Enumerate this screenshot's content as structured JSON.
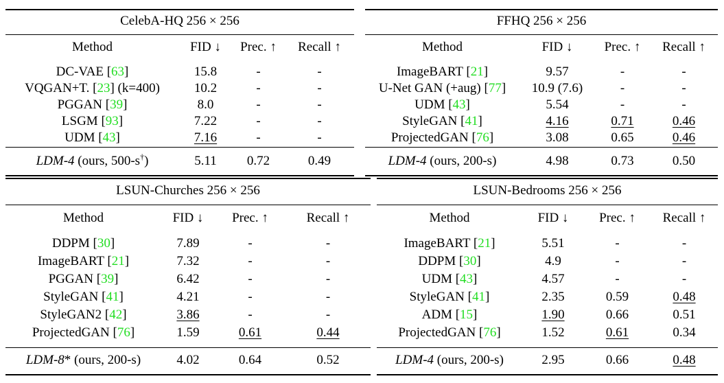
{
  "tables": [
    {
      "title": "CelebA-HQ 256 × 256",
      "headers": [
        "Method",
        "FID ↓",
        "Prec. ↑",
        "Recall ↑"
      ],
      "rows": [
        {
          "method": "DC-VAE",
          "cite": "63",
          "method_suffix": "",
          "fid": "15.8",
          "prec": "-",
          "recall": "-"
        },
        {
          "method": "VQGAN+T.",
          "cite": "23",
          "method_suffix": " (k=400)",
          "fid": "10.2",
          "prec": "-",
          "recall": "-"
        },
        {
          "method": "PGGAN",
          "cite": "39",
          "method_suffix": "",
          "fid": "8.0",
          "prec": "-",
          "recall": "-"
        },
        {
          "method": "LSGM",
          "cite": "93",
          "method_suffix": "",
          "fid": "7.22",
          "prec": "-",
          "recall": "-"
        },
        {
          "method": "UDM",
          "cite": "43",
          "method_suffix": "",
          "fid": "7.16",
          "prec": "-",
          "recall": "-"
        }
      ],
      "ours": {
        "method": "LDM-4",
        "sup": "",
        "detail": " (ours, 500-s",
        "detail_sup": "†",
        "detail_end": ")",
        "fid": "5.11",
        "prec": "0.72",
        "recall": "0.49"
      }
    },
    {
      "title": "FFHQ 256 × 256",
      "headers": [
        "Method",
        "FID ↓",
        "Prec. ↑",
        "Recall ↑"
      ],
      "rows": [
        {
          "method": "ImageBART",
          "cite": "21",
          "method_suffix": "",
          "fid": "9.57",
          "prec": "-",
          "recall": "-"
        },
        {
          "method": "U-Net GAN (+aug)",
          "cite": "77",
          "method_suffix": "",
          "fid": "10.9 (7.6)",
          "prec": "-",
          "recall": "-"
        },
        {
          "method": "UDM",
          "cite": "43",
          "method_suffix": "",
          "fid": "5.54",
          "prec": "-",
          "recall": "-"
        },
        {
          "method": "StyleGAN",
          "cite": "41",
          "method_suffix": "",
          "fid": "4.16",
          "prec": "0.71",
          "recall": "0.46"
        },
        {
          "method": "ProjectedGAN",
          "cite": "76",
          "method_suffix": "",
          "fid": "3.08",
          "prec": "0.65",
          "recall": "0.46"
        }
      ],
      "ours": {
        "method": "LDM-4",
        "sup": "",
        "detail": " (ours, 200-s)",
        "detail_sup": "",
        "detail_end": "",
        "fid": "4.98",
        "prec": "0.73",
        "recall": "0.50"
      }
    },
    {
      "title": "LSUN-Churches 256 × 256",
      "headers": [
        "Method",
        "FID ↓",
        "Prec. ↑",
        "Recall ↑"
      ],
      "rows": [
        {
          "method": "DDPM",
          "cite": "30",
          "method_suffix": "",
          "fid": "7.89",
          "prec": "-",
          "recall": "-"
        },
        {
          "method": "ImageBART",
          "cite": "21",
          "method_suffix": "",
          "fid": "7.32",
          "prec": "-",
          "recall": "-"
        },
        {
          "method": "PGGAN",
          "cite": "39",
          "method_suffix": "",
          "fid": "6.42",
          "prec": "-",
          "recall": "-"
        },
        {
          "method": "StyleGAN",
          "cite": "41",
          "method_suffix": "",
          "fid": "4.21",
          "prec": "-",
          "recall": "-"
        },
        {
          "method": "StyleGAN2",
          "cite": "42",
          "method_suffix": "",
          "fid": "3.86",
          "prec": "-",
          "recall": "-"
        },
        {
          "method": "ProjectedGAN",
          "cite": "76",
          "method_suffix": "",
          "fid": "1.59",
          "prec": "0.61",
          "recall": "0.44"
        }
      ],
      "ours": {
        "method": "LDM-8",
        "sup": "*",
        "detail": " (ours, 200-s)",
        "detail_sup": "",
        "detail_end": "",
        "fid": "4.02",
        "prec": "0.64",
        "recall": "0.52"
      }
    },
    {
      "title": "LSUN-Bedrooms 256 × 256",
      "headers": [
        "Method",
        "FID ↓",
        "Prec. ↑",
        "Recall ↑"
      ],
      "rows": [
        {
          "method": "ImageBART",
          "cite": "21",
          "method_suffix": "",
          "fid": "5.51",
          "prec": "-",
          "recall": "-"
        },
        {
          "method": "DDPM",
          "cite": "30",
          "method_suffix": "",
          "fid": "4.9",
          "prec": "-",
          "recall": "-"
        },
        {
          "method": "UDM",
          "cite": "43",
          "method_suffix": "",
          "fid": "4.57",
          "prec": "-",
          "recall": "-"
        },
        {
          "method": "StyleGAN",
          "cite": "41",
          "method_suffix": "",
          "fid": "2.35",
          "prec": "0.59",
          "recall": "0.48"
        },
        {
          "method": "ADM",
          "cite": "15",
          "method_suffix": "",
          "fid": "1.90",
          "prec": "0.66",
          "recall": "0.51"
        },
        {
          "method": "ProjectedGAN",
          "cite": "76",
          "method_suffix": "",
          "fid": "1.52",
          "prec": "0.61",
          "recall": "0.34"
        }
      ],
      "ours": {
        "method": "LDM-4",
        "sup": "",
        "detail": " (ours, 200-s)",
        "detail_sup": "",
        "detail_end": "",
        "fid": "2.95",
        "prec": "0.66",
        "recall": "0.48"
      }
    }
  ]
}
